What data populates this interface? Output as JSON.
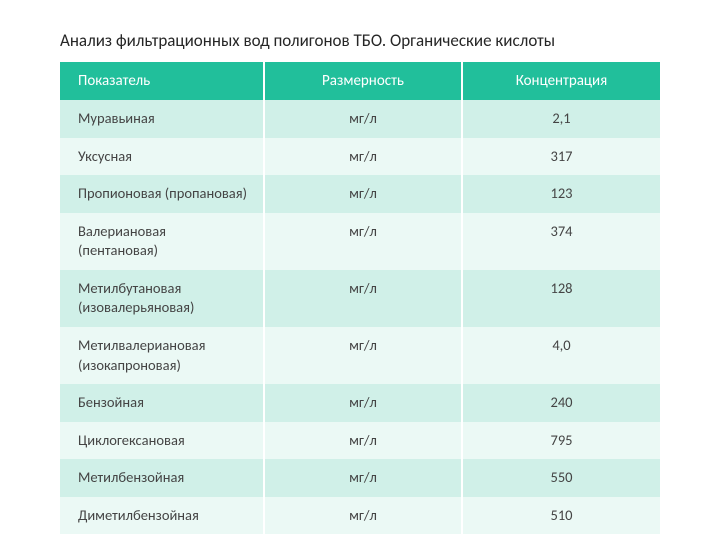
{
  "title": "Анализ фильтрационных вод полигонов ТБО. Органические кислоты",
  "table": {
    "type": "table",
    "header_bg": "#21bf9b",
    "header_fg": "#ffffff",
    "band_a_bg": "#d0f0e8",
    "band_b_bg": "#ebf9f5",
    "text_color": "#444444",
    "font_family": "Calibri",
    "header_fontsize": 15,
    "cell_fontsize": 14.5,
    "title_fontsize": 17,
    "column_widths_pct": [
      34,
      33,
      33
    ],
    "columns": [
      "Показатель",
      "Размерность",
      "Концентрация"
    ],
    "column_align": [
      "left",
      "center",
      "center"
    ],
    "rows": [
      [
        "Муравьиная",
        "мг/л",
        "2,1"
      ],
      [
        "Уксусная",
        "мг/л",
        "317"
      ],
      [
        "Пропионовая (пропановая)",
        "мг/л",
        "123"
      ],
      [
        "Валериановая (пентановая)",
        "мг/л",
        "374"
      ],
      [
        "Метилбутановая (изовалерьяновая)",
        "мг/л",
        "128"
      ],
      [
        "Метилвалериановая (изокапроновая)",
        "мг/л",
        "4,0"
      ],
      [
        "Бензойная",
        "мг/л",
        "240"
      ],
      [
        "Циклогексановая",
        "мг/л",
        "795"
      ],
      [
        "Метилбензойная",
        "мг/л",
        "550"
      ],
      [
        "Диметилбензойная",
        "мг/л",
        "510"
      ]
    ]
  }
}
